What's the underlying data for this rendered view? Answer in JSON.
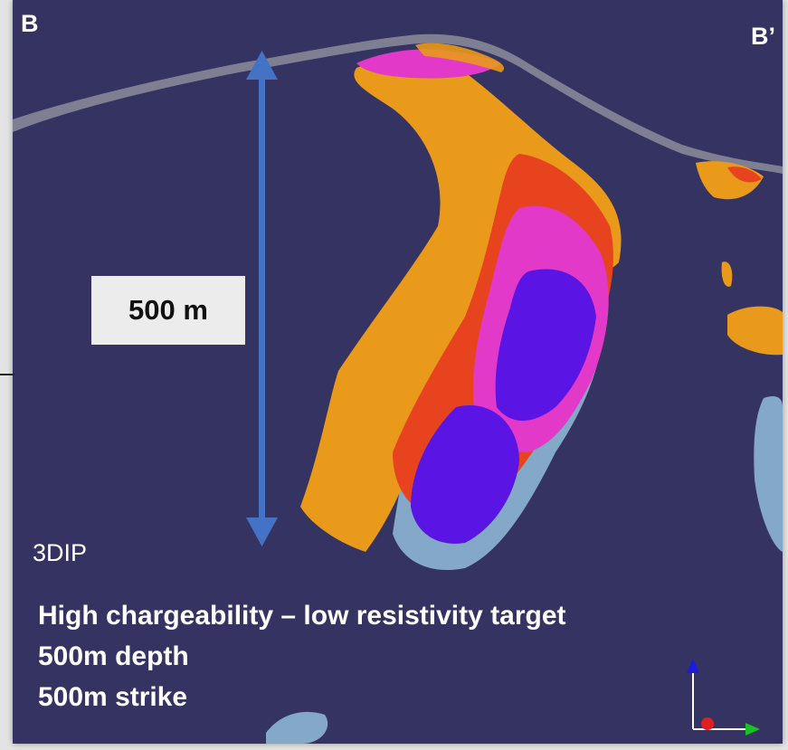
{
  "labels": {
    "section_start": "B",
    "section_end": "B’",
    "scale_bar": "500 m",
    "method": "3DIP"
  },
  "notes": [
    "High chargeability – low resistivity target",
    "500m depth",
    "500m strike"
  ],
  "colors": {
    "background": "#343361",
    "resistivity_shell": "#e99a1a",
    "high_chargeability": "#e8431f",
    "very_high_chargeability": "#e239c9",
    "core": "#5a14e4",
    "low_resistivity_shell": "#8db5d4",
    "surface": "#8d8d9c",
    "scale_arrow": "#4472c4"
  },
  "axes_icon": [
    "up-axis",
    "east-axis",
    "north-axis"
  ]
}
